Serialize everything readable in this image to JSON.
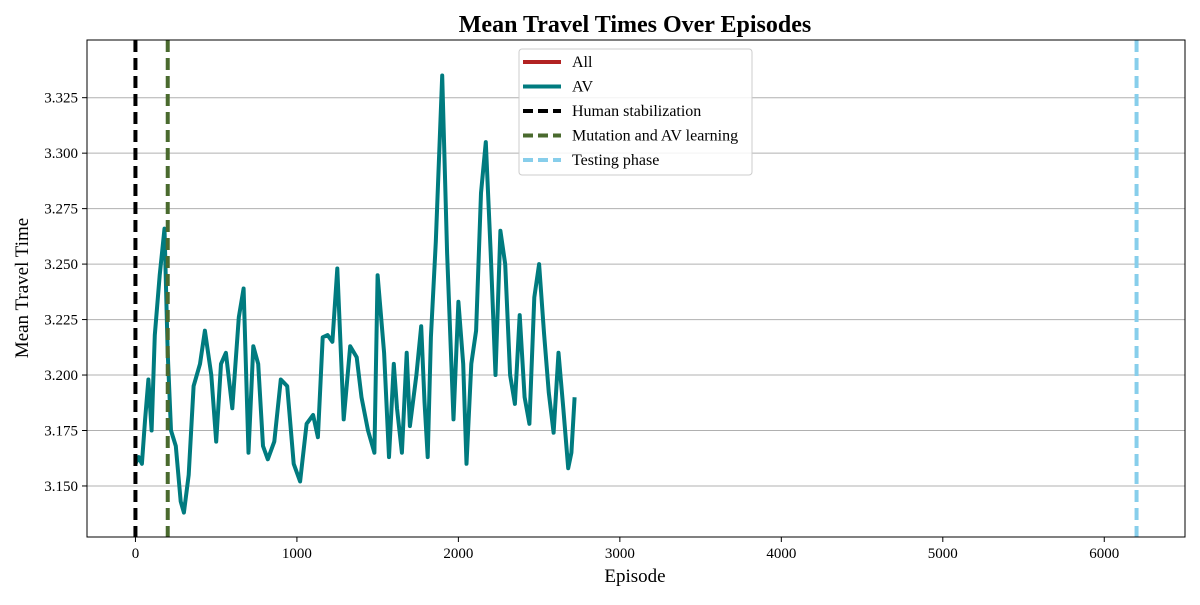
{
  "chart_data": {
    "type": "line",
    "title": "Mean Travel Times Over Episodes",
    "xlabel": "Episode",
    "ylabel": "Mean Travel Time",
    "xlim": [
      -300,
      6500
    ],
    "ylim": [
      3.127,
      3.351
    ],
    "x_ticks": [
      0,
      1000,
      2000,
      3000,
      4000,
      5000,
      6000
    ],
    "y_ticks": [
      3.15,
      3.175,
      3.2,
      3.225,
      3.25,
      3.275,
      3.3,
      3.325
    ],
    "x_tick_labels": [
      "0",
      "1000",
      "2000",
      "3000",
      "4000",
      "5000",
      "6000"
    ],
    "y_tick_labels": [
      "3.150",
      "3.175",
      "3.200",
      "3.225",
      "3.250",
      "3.275",
      "3.300",
      "3.325"
    ],
    "grid": "horizontal",
    "legend_position": "top-center",
    "series": [
      {
        "name": "All",
        "color": "#b22222",
        "x": [
          0,
          20,
          40,
          60,
          80,
          100,
          120,
          150,
          180,
          200,
          220,
          250,
          280,
          300,
          330,
          360,
          400,
          430,
          470,
          500,
          530,
          560,
          600,
          640,
          670,
          700,
          730,
          760,
          790,
          820,
          860,
          900,
          940,
          980,
          1020,
          1060,
          1100,
          1130,
          1160,
          1190,
          1220,
          1250,
          1290,
          1330,
          1370,
          1400,
          1440,
          1480,
          1500,
          1540,
          1570,
          1600,
          1620,
          1650,
          1680,
          1700,
          1740,
          1770,
          1790,
          1810,
          1830,
          1860,
          1900,
          1930,
          1970,
          2000,
          2030,
          2050,
          2080,
          2110,
          2140,
          2170,
          2200,
          2230,
          2260,
          2290,
          2320,
          2350,
          2380,
          2410,
          2440,
          2470,
          2500,
          2530,
          2560,
          2590,
          2620,
          2650,
          2680,
          2700,
          2720
        ],
        "y": [
          3.16,
          3.163,
          3.16,
          3.18,
          3.198,
          3.175,
          3.218,
          3.245,
          3.266,
          3.21,
          3.175,
          3.168,
          3.143,
          3.138,
          3.155,
          3.195,
          3.205,
          3.22,
          3.2,
          3.17,
          3.205,
          3.21,
          3.185,
          3.226,
          3.239,
          3.165,
          3.213,
          3.205,
          3.168,
          3.162,
          3.17,
          3.198,
          3.195,
          3.16,
          3.152,
          3.178,
          3.182,
          3.172,
          3.217,
          3.218,
          3.215,
          3.248,
          3.18,
          3.213,
          3.208,
          3.19,
          3.175,
          3.165,
          3.245,
          3.21,
          3.163,
          3.205,
          3.185,
          3.165,
          3.21,
          3.177,
          3.2,
          3.222,
          3.188,
          3.163,
          3.217,
          3.26,
          3.335,
          3.255,
          3.18,
          3.233,
          3.205,
          3.16,
          3.205,
          3.22,
          3.282,
          3.305,
          3.255,
          3.2,
          3.265,
          3.25,
          3.2,
          3.187,
          3.227,
          3.19,
          3.178,
          3.235,
          3.25,
          3.219,
          3.192,
          3.174,
          3.21,
          3.185,
          3.158,
          3.165,
          3.19
        ],
        "legend_only": true
      },
      {
        "name": "AV",
        "color": "#007b7f",
        "x": [
          0,
          20,
          40,
          60,
          80,
          100,
          120,
          150,
          180,
          200,
          220,
          250,
          280,
          300,
          330,
          360,
          400,
          430,
          470,
          500,
          530,
          560,
          600,
          640,
          670,
          700,
          730,
          760,
          790,
          820,
          860,
          900,
          940,
          980,
          1020,
          1060,
          1100,
          1130,
          1160,
          1190,
          1220,
          1250,
          1290,
          1330,
          1370,
          1400,
          1440,
          1480,
          1500,
          1540,
          1570,
          1600,
          1620,
          1650,
          1680,
          1700,
          1740,
          1770,
          1790,
          1810,
          1830,
          1860,
          1900,
          1930,
          1970,
          2000,
          2030,
          2050,
          2080,
          2110,
          2140,
          2170,
          2200,
          2230,
          2260,
          2290,
          2320,
          2350,
          2380,
          2410,
          2440,
          2470,
          2500,
          2530,
          2560,
          2590,
          2620,
          2650,
          2680,
          2700,
          2720
        ],
        "y": [
          3.16,
          3.163,
          3.16,
          3.18,
          3.198,
          3.175,
          3.218,
          3.245,
          3.266,
          3.21,
          3.175,
          3.168,
          3.143,
          3.138,
          3.155,
          3.195,
          3.205,
          3.22,
          3.2,
          3.17,
          3.205,
          3.21,
          3.185,
          3.226,
          3.239,
          3.165,
          3.213,
          3.205,
          3.168,
          3.162,
          3.17,
          3.198,
          3.195,
          3.16,
          3.152,
          3.178,
          3.182,
          3.172,
          3.217,
          3.218,
          3.215,
          3.248,
          3.18,
          3.213,
          3.208,
          3.19,
          3.175,
          3.165,
          3.245,
          3.21,
          3.163,
          3.205,
          3.185,
          3.165,
          3.21,
          3.177,
          3.2,
          3.222,
          3.188,
          3.163,
          3.217,
          3.26,
          3.335,
          3.255,
          3.18,
          3.233,
          3.205,
          3.16,
          3.205,
          3.22,
          3.282,
          3.305,
          3.255,
          3.2,
          3.265,
          3.25,
          3.2,
          3.187,
          3.227,
          3.19,
          3.178,
          3.235,
          3.25,
          3.219,
          3.192,
          3.174,
          3.21,
          3.185,
          3.158,
          3.165,
          3.19
        ]
      }
    ],
    "vlines": [
      {
        "name": "Human stabilization",
        "x": 0,
        "color": "#000000"
      },
      {
        "name": "Mutation and AV learning",
        "x": 200,
        "color": "#4a6a2e"
      },
      {
        "name": "Testing phase",
        "x": 6200,
        "color": "#87ceeb"
      }
    ]
  }
}
